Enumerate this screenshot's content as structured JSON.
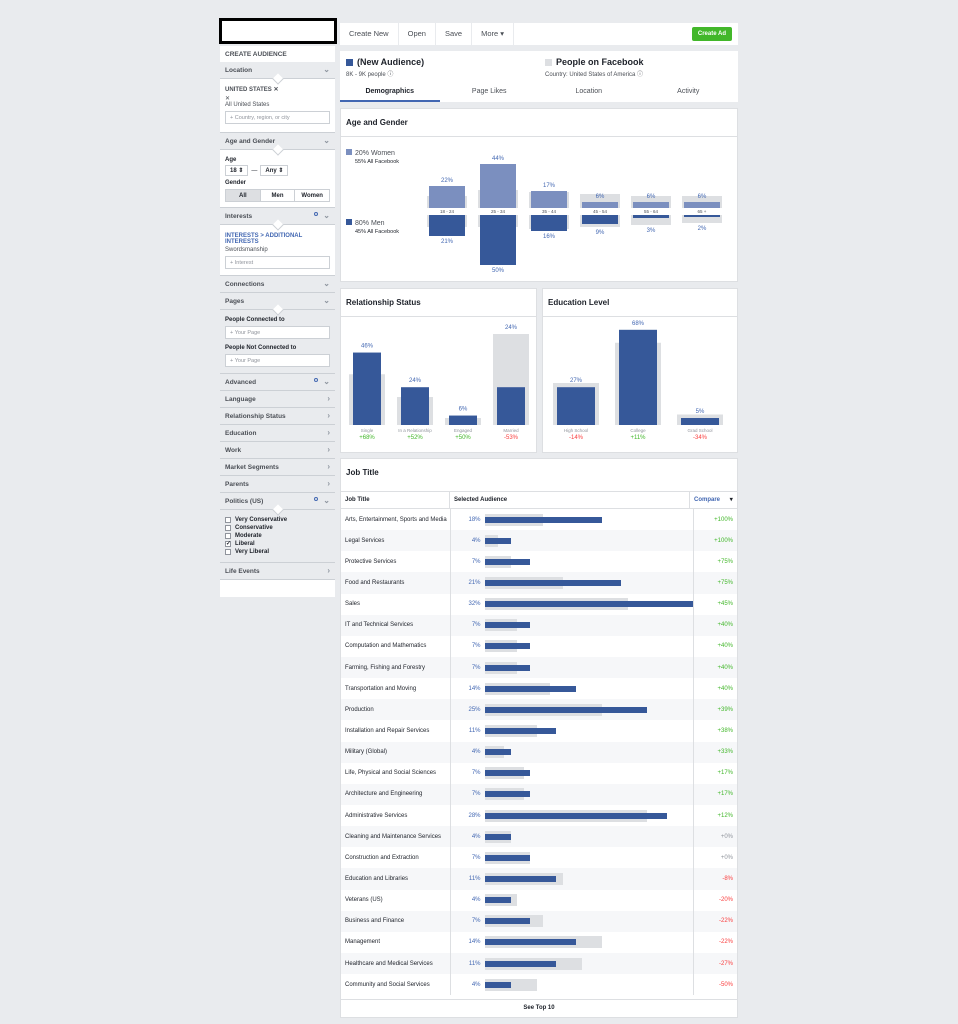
{
  "sidebar": {
    "title": "CREATE AUDIENCE",
    "location": {
      "head": "Location",
      "country": "UNITED STATES",
      "all": "All United States",
      "placeholder": "Country, region, or city"
    },
    "age_gender": {
      "head": "Age and Gender",
      "age_label": "Age",
      "age_min": "18",
      "age_sep": "—",
      "age_max": "Any",
      "gender_label": "Gender",
      "genders": [
        "All",
        "Men",
        "Women"
      ]
    },
    "interests": {
      "head": "Interests",
      "path": "INTERESTS > ADDITIONAL INTERESTS",
      "value": "Swordsmanship",
      "placeholder": "Interest"
    },
    "connections": "Connections",
    "pages": {
      "head": "Pages",
      "connected": "People Connected to",
      "not_connected": "People Not Connected to",
      "placeholder": "Your Page"
    },
    "sections": [
      "Advanced",
      "Language",
      "Relationship Status",
      "Education",
      "Work",
      "Market Segments",
      "Parents",
      "Politics (US)"
    ],
    "politics": [
      "Very Conservative",
      "Conservative",
      "Moderate",
      "Liberal",
      "Very Liberal"
    ],
    "politics_checked": "Liberal",
    "life_events": "Life Events"
  },
  "toolbar": {
    "items": [
      "Create New",
      "Open",
      "Save",
      "More ▾"
    ],
    "create_ad": "Create Ad"
  },
  "audience": {
    "name": "(New Audience)",
    "size": "8K - 9K people",
    "compare_name": "People on Facebook",
    "compare_country": "Country: United States of America"
  },
  "tabs": [
    "Demographics",
    "Page Likes",
    "Location",
    "Activity"
  ],
  "age_gender": {
    "title": "Age and Gender",
    "women_label": "20% Women",
    "women_sub": "55% All Facebook",
    "men_label": "80% Men",
    "men_sub": "45% All Facebook",
    "colors": {
      "women": "#7b8fbf",
      "men": "#365899",
      "baseline": "#dddfe2"
    }
  },
  "relationship": {
    "title": "Relationship Status"
  },
  "education": {
    "title": "Education Level"
  },
  "chart_data": [
    {
      "type": "bar",
      "title": "Age and Gender",
      "categories": [
        "18 - 24",
        "25 - 34",
        "35 - 44",
        "45 - 54",
        "55 - 64",
        "65 +"
      ],
      "series": [
        {
          "name": "Women",
          "values": [
            22,
            44,
            17,
            6,
            6,
            6
          ],
          "labels": [
            "22%",
            "44%",
            "17%",
            "6%",
            "6%",
            "6%"
          ]
        },
        {
          "name": "Men",
          "values": [
            21,
            50,
            16,
            9,
            3,
            2
          ],
          "labels": [
            "21%",
            "50%",
            "16%",
            "9%",
            "3%",
            "2%"
          ]
        }
      ]
    },
    {
      "type": "bar",
      "title": "Relationship Status",
      "categories": [
        "Single",
        "In a Relationship",
        "Engaged",
        "Married"
      ],
      "series": [
        {
          "name": "Selected Audience",
          "values": [
            46,
            24,
            6,
            24
          ],
          "labels": [
            "46%",
            "24%",
            "6%",
            "24%"
          ]
        }
      ],
      "compare": [
        "+68%",
        "+52%",
        "+50%",
        "-53%"
      ]
    },
    {
      "type": "bar",
      "title": "Education Level",
      "categories": [
        "High School",
        "College",
        "Grad School"
      ],
      "series": [
        {
          "name": "Selected Audience",
          "values": [
            27,
            68,
            5
          ],
          "labels": [
            "27%",
            "68%",
            "5%"
          ]
        }
      ],
      "compare": [
        "-14%",
        "+11%",
        "-34%"
      ]
    }
  ],
  "job": {
    "title": "Job Title",
    "col_title": "Job Title",
    "col_sel": "Selected Audience",
    "col_compare": "Compare",
    "footer": "See Top 10",
    "rows": [
      {
        "t": "Arts, Entertainment, Sports and Media",
        "p": "18%",
        "v": 18,
        "b": 9,
        "c": "+100%"
      },
      {
        "t": "Legal Services",
        "p": "4%",
        "v": 4,
        "b": 2,
        "c": "+100%"
      },
      {
        "t": "Protective Services",
        "p": "7%",
        "v": 7,
        "b": 4,
        "c": "+75%"
      },
      {
        "t": "Food and Restaurants",
        "p": "21%",
        "v": 21,
        "b": 12,
        "c": "+75%"
      },
      {
        "t": "Sales",
        "p": "32%",
        "v": 32,
        "b": 22,
        "c": "+45%"
      },
      {
        "t": "IT and Technical Services",
        "p": "7%",
        "v": 7,
        "b": 5,
        "c": "+40%"
      },
      {
        "t": "Computation and Mathematics",
        "p": "7%",
        "v": 7,
        "b": 5,
        "c": "+40%"
      },
      {
        "t": "Farming, Fishing and Forestry",
        "p": "7%",
        "v": 7,
        "b": 5,
        "c": "+40%"
      },
      {
        "t": "Transportation and Moving",
        "p": "14%",
        "v": 14,
        "b": 10,
        "c": "+40%"
      },
      {
        "t": "Production",
        "p": "25%",
        "v": 25,
        "b": 18,
        "c": "+39%"
      },
      {
        "t": "Installation and Repair Services",
        "p": "11%",
        "v": 11,
        "b": 8,
        "c": "+38%"
      },
      {
        "t": "Military (Global)",
        "p": "4%",
        "v": 4,
        "b": 3,
        "c": "+33%"
      },
      {
        "t": "Life, Physical and Social Sciences",
        "p": "7%",
        "v": 7,
        "b": 6,
        "c": "+17%"
      },
      {
        "t": "Architecture and Engineering",
        "p": "7%",
        "v": 7,
        "b": 6,
        "c": "+17%"
      },
      {
        "t": "Administrative Services",
        "p": "28%",
        "v": 28,
        "b": 25,
        "c": "+12%"
      },
      {
        "t": "Cleaning and Maintenance Services",
        "p": "4%",
        "v": 4,
        "b": 4,
        "c": "+0%"
      },
      {
        "t": "Construction and Extraction",
        "p": "7%",
        "v": 7,
        "b": 7,
        "c": "+0%"
      },
      {
        "t": "Education and Libraries",
        "p": "11%",
        "v": 11,
        "b": 12,
        "c": "-8%"
      },
      {
        "t": "Veterans (US)",
        "p": "4%",
        "v": 4,
        "b": 5,
        "c": "-20%"
      },
      {
        "t": "Business and Finance",
        "p": "7%",
        "v": 7,
        "b": 9,
        "c": "-22%"
      },
      {
        "t": "Management",
        "p": "14%",
        "v": 14,
        "b": 18,
        "c": "-22%"
      },
      {
        "t": "Healthcare and Medical Services",
        "p": "11%",
        "v": 11,
        "b": 15,
        "c": "-27%"
      },
      {
        "t": "Community and Social Services",
        "p": "4%",
        "v": 4,
        "b": 8,
        "c": "-50%"
      }
    ]
  }
}
